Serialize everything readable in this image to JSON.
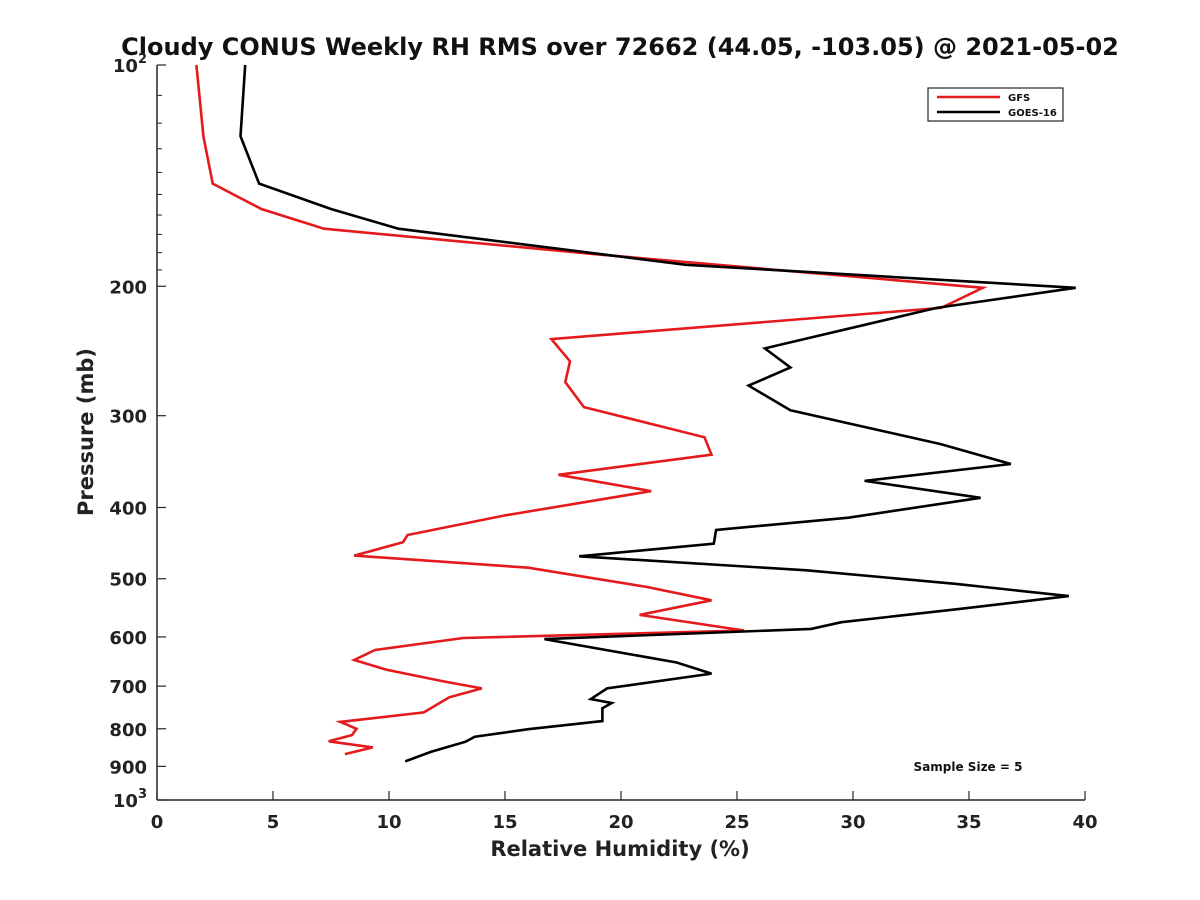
{
  "chart_data": {
    "type": "line",
    "title": "Cloudy CONUS Weekly RH RMS over 72662 (44.05, -103.05) @ 2021-05-02",
    "xlabel": "Relative Humidity (%)",
    "ylabel": "Pressure (mb)",
    "xlim": [
      0,
      40
    ],
    "ylim": [
      100,
      1000
    ],
    "y_scale": "log",
    "y_inverted": true,
    "grid": false,
    "legend_position": "top-right",
    "x_ticks": [
      "0",
      "5",
      "10",
      "15",
      "20",
      "25",
      "30",
      "35",
      "40"
    ],
    "y_ticks": [
      {
        "value": 100,
        "base": "10",
        "exp": "2"
      },
      {
        "value": 200,
        "label": "200"
      },
      {
        "value": 300,
        "label": "300"
      },
      {
        "value": 400,
        "label": "400"
      },
      {
        "value": 500,
        "label": "500"
      },
      {
        "value": 600,
        "label": "600"
      },
      {
        "value": 700,
        "label": "700"
      },
      {
        "value": 800,
        "label": "800"
      },
      {
        "value": 900,
        "label": "900"
      },
      {
        "value": 1000,
        "base": "10",
        "exp": "3"
      }
    ],
    "annotation": "Sample Size = 5",
    "series": [
      {
        "name": "GFS",
        "color": "#e41a1c",
        "points": [
          [
            1.7,
            100
          ],
          [
            2.0,
            125
          ],
          [
            2.4,
            145
          ],
          [
            4.5,
            157
          ],
          [
            7.2,
            167
          ],
          [
            19.0,
            181
          ],
          [
            35.6,
            201
          ],
          [
            33.8,
            214
          ],
          [
            17.0,
            236
          ],
          [
            17.8,
            253
          ],
          [
            17.6,
            270
          ],
          [
            18.4,
            292
          ],
          [
            23.6,
            321
          ],
          [
            23.9,
            339
          ],
          [
            17.3,
            361
          ],
          [
            21.3,
            380
          ],
          [
            15.0,
            410
          ],
          [
            10.8,
            436
          ],
          [
            10.6,
            446
          ],
          [
            8.5,
            465
          ],
          [
            16.0,
            483
          ],
          [
            21.1,
            513
          ],
          [
            23.9,
            535
          ],
          [
            20.8,
            560
          ],
          [
            25.3,
            588
          ],
          [
            13.2,
            602
          ],
          [
            9.4,
            625
          ],
          [
            8.5,
            645
          ],
          [
            9.9,
            665
          ],
          [
            12.4,
            690
          ],
          [
            14.0,
            705
          ],
          [
            12.6,
            725
          ],
          [
            11.5,
            760
          ],
          [
            7.9,
            783
          ],
          [
            8.6,
            800
          ],
          [
            8.4,
            816
          ],
          [
            7.4,
            832
          ],
          [
            9.3,
            848
          ],
          [
            8.1,
            866
          ]
        ]
      },
      {
        "name": "GOES-16",
        "color": "#000000",
        "points": [
          [
            3.8,
            100
          ],
          [
            3.6,
            125
          ],
          [
            4.4,
            145
          ],
          [
            7.5,
            157
          ],
          [
            10.4,
            167
          ],
          [
            22.8,
            187
          ],
          [
            39.6,
            201
          ],
          [
            33.6,
            214
          ],
          [
            26.2,
            243
          ],
          [
            27.3,
            258
          ],
          [
            25.5,
            273
          ],
          [
            27.3,
            295
          ],
          [
            33.8,
            328
          ],
          [
            36.8,
            349
          ],
          [
            30.5,
            368
          ],
          [
            35.5,
            388
          ],
          [
            29.8,
            413
          ],
          [
            24.1,
            429
          ],
          [
            24.0,
            448
          ],
          [
            18.2,
            466
          ],
          [
            28.0,
            487
          ],
          [
            34.4,
            508
          ],
          [
            39.3,
            528
          ],
          [
            34.5,
            550
          ],
          [
            29.5,
            573
          ],
          [
            28.2,
            585
          ],
          [
            16.7,
            604
          ],
          [
            22.4,
            650
          ],
          [
            23.9,
            673
          ],
          [
            19.4,
            705
          ],
          [
            18.7,
            729
          ],
          [
            19.6,
            738
          ],
          [
            19.2,
            750
          ],
          [
            19.2,
            781
          ],
          [
            16.0,
            801
          ],
          [
            13.7,
            820
          ],
          [
            13.3,
            833
          ],
          [
            11.8,
            860
          ],
          [
            10.7,
            886
          ]
        ]
      }
    ]
  }
}
